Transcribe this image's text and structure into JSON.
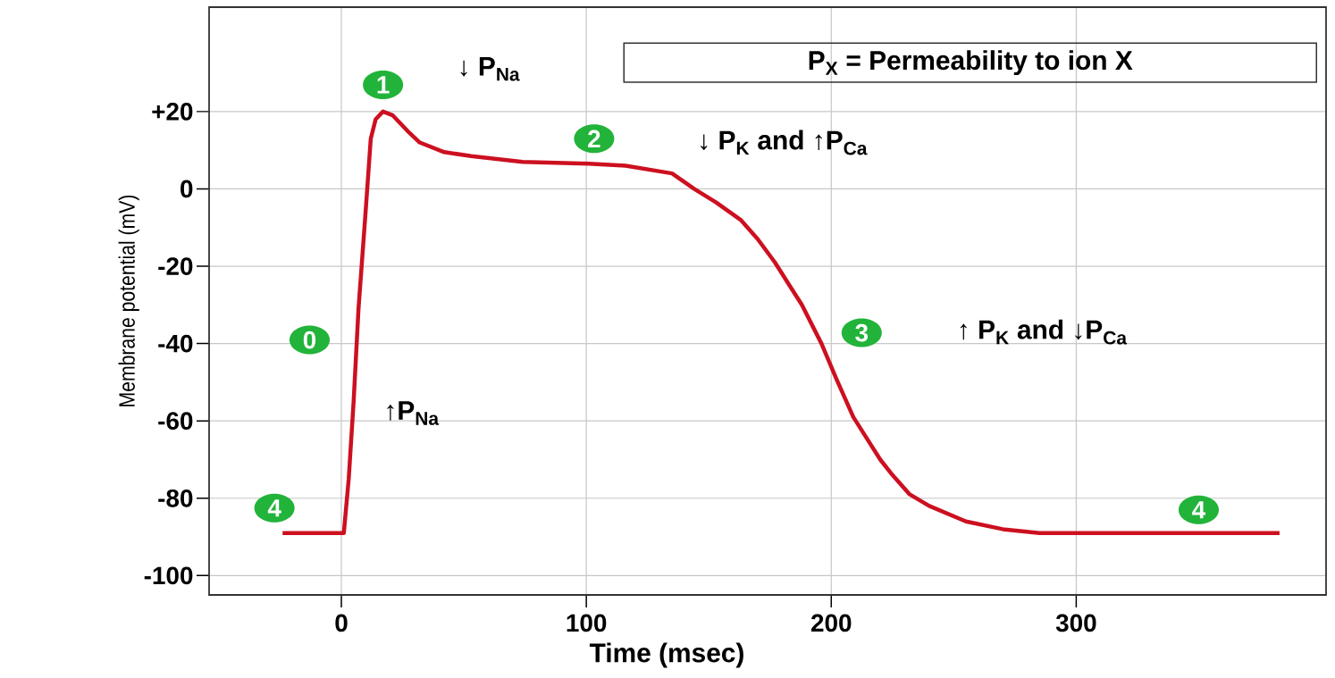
{
  "chart_data": {
    "type": "line",
    "xlabel": "Time (msec)",
    "ylabel": "Membrane potential (mV)",
    "xlim": [
      -54,
      402
    ],
    "ylim": [
      -105,
      47
    ],
    "xticks": [
      0,
      100,
      200,
      300
    ],
    "yticks": [
      {
        "value": 20,
        "label": "+20"
      },
      0,
      -20,
      -40,
      -60,
      -80,
      -100
    ],
    "grid": true,
    "series": [
      {
        "color": "#cc1020",
        "marker": "none",
        "line_style": "solid",
        "x": [
          -24,
          0,
          1,
          3,
          5,
          7,
          10,
          12,
          14,
          17,
          21,
          27,
          32,
          42,
          53,
          74,
          101,
          116,
          135,
          144,
          153,
          163,
          170,
          177,
          183,
          188,
          196,
          202,
          209,
          215,
          220,
          225,
          232,
          240,
          255,
          270,
          285,
          320,
          383
        ],
        "values": [
          -89,
          -89,
          -89,
          -75,
          -55,
          -31,
          -5,
          13,
          18,
          20,
          19,
          15,
          12,
          9.5,
          8.5,
          7,
          6.5,
          6,
          4,
          0,
          -3.5,
          -8,
          -13,
          -19,
          -25,
          -30,
          -40,
          -49,
          -59,
          -65,
          -70,
          -74,
          -79,
          -82,
          -86,
          -88,
          -89,
          -89,
          -89
        ]
      }
    ],
    "annotations": [
      "P$_{X}$ =  Permeability to ion X",
      "↓ P$_{Na}$",
      "↓  P$_{K}$ and ↑P$_{Ca}$",
      "↑ P$_{K}$ and ↓P$_{Ca}$",
      "↑P$_{Na}$",
      {
        "text": "0",
        "x": 6,
        "y": -40
      },
      {
        "text": "4",
        "x": -12,
        "y": -89
      },
      {
        "text": "1",
        "x": 17,
        "y": 20
      },
      {
        "text": "2",
        "x": 101,
        "y": 6.5
      },
      {
        "text": "3",
        "x": 196,
        "y": -40
      },
      {
        "text": "4",
        "x": 350,
        "y": -89
      }
    ]
  }
}
